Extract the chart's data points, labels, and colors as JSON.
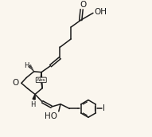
{
  "background_color": "#faf6ee",
  "line_color": "#1a1a1a",
  "line_width": 1.1,
  "figsize": [
    1.91,
    1.72
  ],
  "dpi": 100,
  "xlim": [
    0.0,
    5.8
  ],
  "ylim": [
    2.2,
    7.8
  ]
}
